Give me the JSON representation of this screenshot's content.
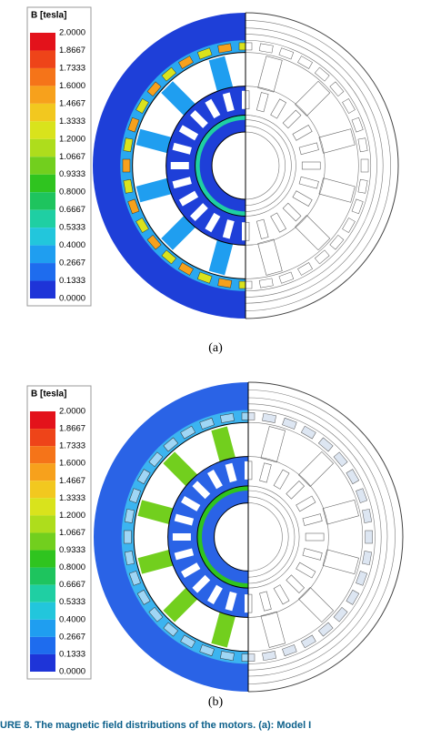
{
  "figure": {
    "panels": [
      {
        "label": "(a)",
        "colorbar": {
          "title": "B [tesla]",
          "ticks": [
            "2.0000",
            "1.8667",
            "1.7333",
            "1.6000",
            "1.4667",
            "1.3333",
            "1.2000",
            "1.0667",
            "0.9333",
            "0.8000",
            "0.6667",
            "0.5333",
            "0.4000",
            "0.2667",
            "0.1333",
            "0.0000"
          ]
        }
      },
      {
        "label": "(b)",
        "colorbar": {
          "title": "B [tesla]",
          "ticks": [
            "2.0000",
            "1.8667",
            "1.7333",
            "1.6000",
            "1.4667",
            "1.3333",
            "1.2000",
            "1.0667",
            "0.9333",
            "0.8000",
            "0.6667",
            "0.5333",
            "0.4000",
            "0.2667",
            "0.1333",
            "0.0000"
          ]
        }
      }
    ],
    "caption": "URE 8. The magnetic field distributions of the motors. (a): Model I",
    "colorbar_colors": [
      "#e3121b",
      "#ee4419",
      "#f57419",
      "#f7a11c",
      "#f2c81f",
      "#d9e31c",
      "#aedd1c",
      "#72cf1e",
      "#2fc41f",
      "#1ec45e",
      "#1fcfa3",
      "#22c6dc",
      "#1f9ef0",
      "#1e6cee",
      "#1e34d8"
    ]
  }
}
